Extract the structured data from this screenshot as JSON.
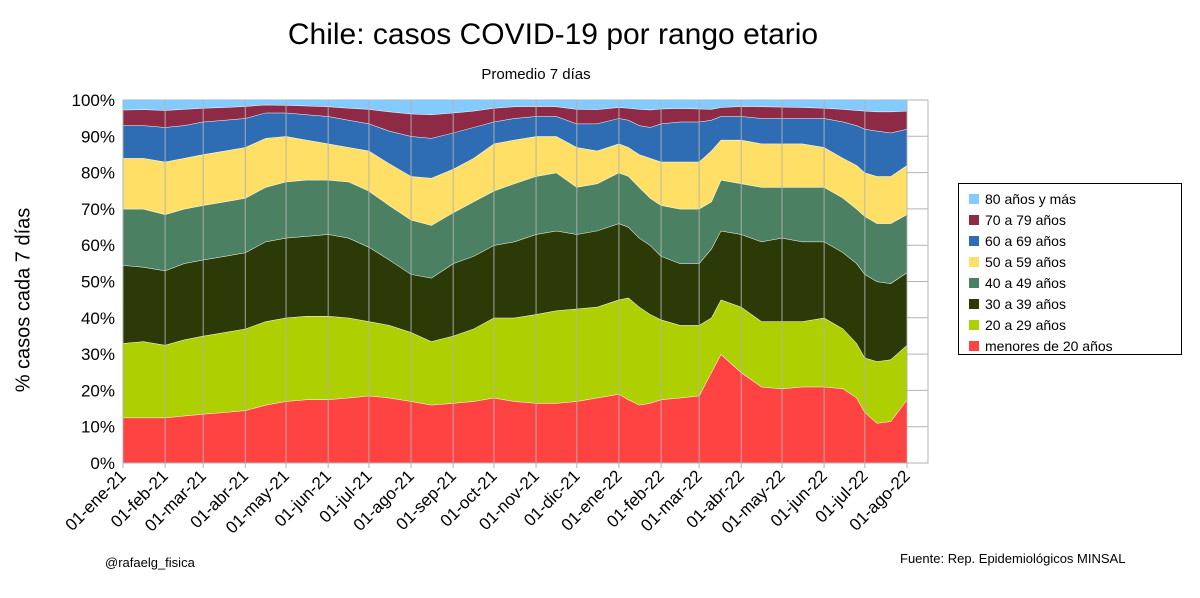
{
  "chart_data": {
    "type": "area",
    "stacked": true,
    "title": "Chile: casos COVID-19  por rango etario",
    "subtitle": "Promedio 7 días",
    "xlabel": "",
    "ylabel": "% casos cada 7 días",
    "ylim": [
      0,
      100
    ],
    "yticks": [
      "0%",
      "10%",
      "20%",
      "30%",
      "40%",
      "50%",
      "60%",
      "70%",
      "80%",
      "90%",
      "100%"
    ],
    "categories": [
      "01-ene-21",
      "01-feb-21",
      "01-mar-21",
      "01-abr-21",
      "01-may-21",
      "01-jun-21",
      "01-jul-21",
      "01-ago-21",
      "01-sep-21",
      "01-oct-21",
      "01-nov-21",
      "01-dic-21",
      "01-ene-22",
      "01-feb-22",
      "01-mar-22",
      "01-abr-22",
      "01-may-22",
      "01-jun-22",
      "01-jul-22",
      "01-ago-22"
    ],
    "x_days": [
      0,
      31,
      59,
      90,
      120,
      151,
      181,
      212,
      243,
      273,
      304,
      334,
      365,
      396,
      424,
      455,
      485,
      516,
      546,
      577
    ],
    "legend_position": "right",
    "series_order_bottom_to_top": [
      "menores de 20 años",
      "20 a 29 años",
      "30 a 39 años",
      "40 a 49 años",
      "50 a 59 años",
      "60 a 69 años",
      "70 a 79 años",
      "80 años y más"
    ],
    "cumulative_boundaries": {
      "days": [
        0,
        15,
        31,
        45,
        59,
        75,
        90,
        105,
        120,
        135,
        151,
        166,
        181,
        196,
        212,
        227,
        243,
        258,
        273,
        288,
        304,
        319,
        334,
        349,
        365,
        372,
        380,
        388,
        396,
        410,
        424,
        433,
        440,
        455,
        470,
        485,
        500,
        516,
        530,
        540,
        546,
        555,
        565,
        577
      ],
      "menores de 20 años": [
        12.5,
        12.5,
        12.5,
        13,
        13.5,
        14,
        14.5,
        16,
        17,
        17.5,
        17.5,
        18,
        18.5,
        18,
        17,
        16,
        16.5,
        17,
        18,
        17,
        16.5,
        16.5,
        17,
        18,
        19,
        17.5,
        16,
        16.5,
        17.5,
        18,
        18.5,
        25,
        30,
        25,
        21,
        20.5,
        21,
        21,
        20.5,
        18,
        14,
        11,
        11.5,
        17.5
      ],
      "20 a 29 años": [
        33,
        33.5,
        32.5,
        34,
        35,
        36,
        37,
        39,
        40,
        40.5,
        40.5,
        40,
        39,
        38,
        36,
        33.5,
        35,
        37,
        40,
        40,
        41,
        42,
        42.5,
        43,
        45,
        45.5,
        43,
        41,
        39.5,
        38,
        38,
        40,
        45,
        43,
        39,
        39,
        39,
        40,
        37,
        33,
        29,
        28,
        28.5,
        32.5
      ],
      "30 a 39 años": [
        54.5,
        54,
        53,
        55,
        56,
        57,
        58,
        61,
        62,
        62.5,
        63,
        62,
        59.5,
        56,
        52,
        51,
        55,
        57,
        60,
        61,
        63,
        64,
        63,
        64,
        66,
        65,
        62,
        60,
        57,
        55,
        55,
        59,
        64,
        63,
        61,
        62,
        61,
        61,
        58,
        55,
        52,
        50,
        49.5,
        52.5
      ],
      "40 a 49 años": [
        70,
        70,
        68.5,
        70,
        71,
        72,
        73,
        76,
        77.5,
        78,
        78,
        77.5,
        75,
        71,
        67,
        65.5,
        69,
        72,
        75,
        77,
        79,
        80,
        76,
        77,
        80,
        79,
        76,
        73,
        71,
        70,
        70,
        72,
        78,
        77,
        76,
        76,
        76,
        76,
        73,
        70,
        68,
        66,
        66,
        68.5
      ],
      "50 a 59 años": [
        84,
        84,
        83,
        84,
        85,
        86,
        87,
        89.5,
        90,
        89,
        88,
        87,
        86,
        82.5,
        79,
        78.5,
        81,
        84,
        88,
        89,
        90,
        90,
        87,
        86,
        88,
        87,
        85,
        84,
        83,
        83,
        83,
        86,
        89,
        89,
        88,
        88,
        88,
        87,
        84,
        82,
        80,
        79,
        79,
        82
      ],
      "60 a 69 años": [
        93,
        93,
        92.5,
        93,
        94,
        94.5,
        95,
        96.5,
        96.5,
        96,
        95.5,
        94.5,
        93.5,
        91.5,
        90,
        89.5,
        91,
        92.5,
        94,
        95,
        95.5,
        95.5,
        93.5,
        93.5,
        95,
        94.5,
        93,
        92.5,
        93.5,
        94,
        94,
        94.5,
        95.5,
        95.5,
        95,
        95,
        95,
        95,
        94,
        93,
        92,
        91.5,
        91,
        92
      ],
      "70 a 79 años": [
        97.3,
        97.4,
        97.2,
        97.5,
        97.8,
        98,
        98.3,
        98.7,
        98.6,
        98.4,
        98.2,
        97.8,
        97.5,
        96.8,
        96.2,
        96,
        96.5,
        97,
        97.8,
        98.2,
        98.3,
        98.2,
        97.5,
        97.4,
        98,
        97.8,
        97.5,
        97.3,
        97.6,
        97.7,
        97.6,
        97.5,
        98,
        98.3,
        98.2,
        98.1,
        98,
        97.8,
        97.5,
        97.2,
        97,
        96.8,
        96.8,
        97
      ],
      "80 años y más": [
        100,
        100,
        100,
        100,
        100,
        100,
        100,
        100,
        100,
        100,
        100,
        100,
        100,
        100,
        100,
        100,
        100,
        100,
        100,
        100,
        100,
        100,
        100,
        100,
        100,
        100,
        100,
        100,
        100,
        100,
        100,
        100,
        100,
        100,
        100,
        100,
        100,
        100,
        100,
        100,
        100,
        100,
        100,
        100
      ]
    },
    "colors": {
      "menores de 20 años": "#ff4343",
      "20 a 29 años": "#aecf00",
      "30 a 39 años": "#2b3a07",
      "40 a 49 años": "#4b8063",
      "50 a 59 años": "#ffdf66",
      "60 a 69 años": "#2e6db4",
      "70 a 79 años": "#8e2a45",
      "80 años y más": "#83caff"
    },
    "legend": [
      "80 años y más",
      "70 a 79 años",
      "60 a 69 años",
      "50 a 59 años",
      "40 a 49 años",
      "30 a 39 años",
      "20 a 29 años",
      "menores de 20 años"
    ]
  },
  "footer": {
    "author": "@rafaelg_fisica",
    "source": "Fuente: Rep. Epidemiológicos MINSAL"
  }
}
